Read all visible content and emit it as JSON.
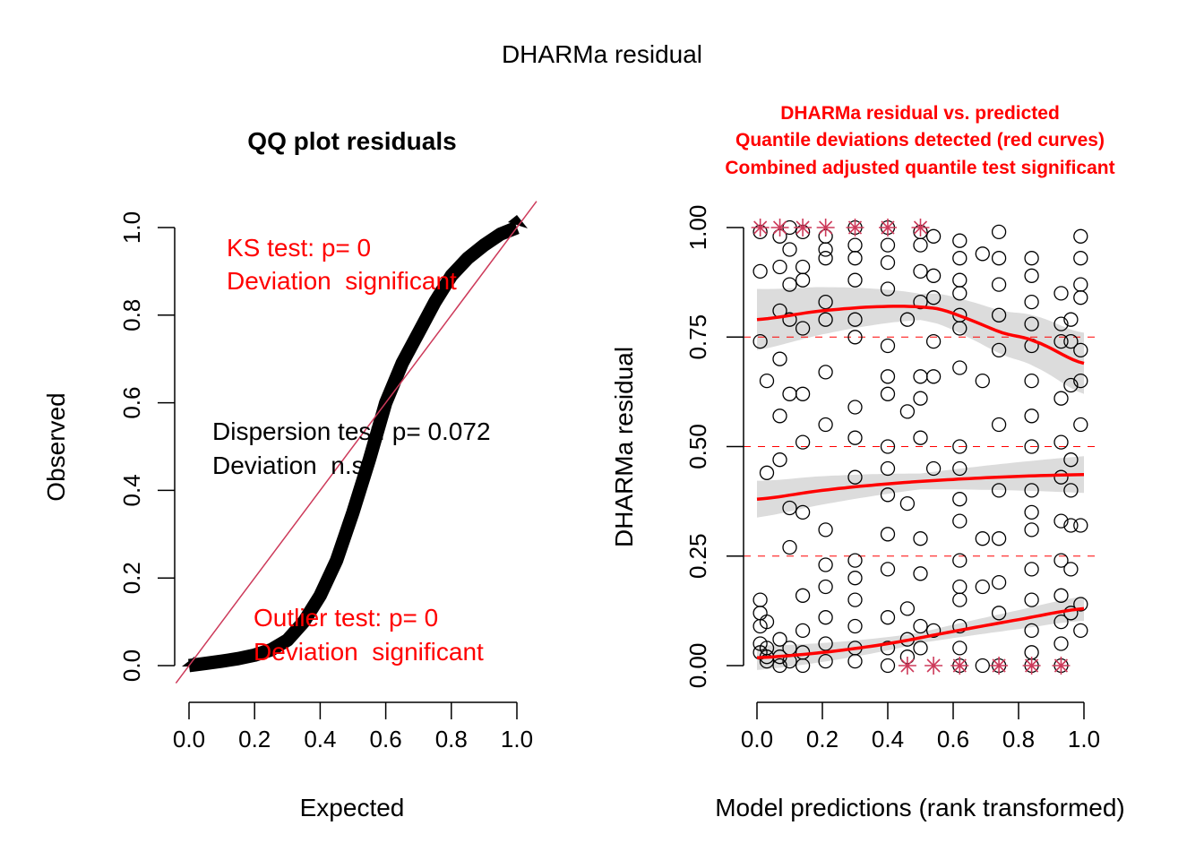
{
  "page": {
    "main_title": "DHARMa residual"
  },
  "colors": {
    "red_text": "#ff0000",
    "reference_line": "#cd3a5a",
    "quantile_line": "#ff0000",
    "band": "#dcdcdc",
    "points": "#000000",
    "outlier_star": "#cd3a5a"
  },
  "chart_data": [
    {
      "type": "scatter",
      "title": "QQ plot residuals",
      "xlabel": "Expected",
      "ylabel": "Observed",
      "xlim": [
        0,
        1
      ],
      "ylim": [
        0,
        1
      ],
      "x_ticks": [
        "0.0",
        "0.2",
        "0.4",
        "0.6",
        "0.8",
        "1.0"
      ],
      "y_ticks": [
        "0.0",
        "0.2",
        "0.4",
        "0.6",
        "0.8",
        "1.0"
      ],
      "grid": false,
      "reference_line": {
        "slope": 1,
        "intercept": 0
      },
      "qq_curve": {
        "x": [
          0.0,
          0.05,
          0.1,
          0.15,
          0.2,
          0.25,
          0.3,
          0.35,
          0.4,
          0.45,
          0.5,
          0.55,
          0.6,
          0.65,
          0.7,
          0.75,
          0.8,
          0.85,
          0.9,
          0.95,
          1.0
        ],
        "y": [
          0.0,
          0.005,
          0.01,
          0.016,
          0.024,
          0.036,
          0.058,
          0.1,
          0.16,
          0.24,
          0.35,
          0.47,
          0.6,
          0.69,
          0.76,
          0.83,
          0.89,
          0.93,
          0.96,
          0.985,
          1.0
        ]
      },
      "annotations": [
        {
          "text": "KS test: p= 0",
          "color": "red"
        },
        {
          "text": "Deviation  significant",
          "color": "red"
        },
        {
          "text": "Dispersion test: p= 0.072",
          "color": "black"
        },
        {
          "text": "Deviation  n.s.",
          "color": "black"
        },
        {
          "text": "Outlier test: p= 0",
          "color": "red"
        },
        {
          "text": "Deviation  significant",
          "color": "red"
        }
      ]
    },
    {
      "type": "scatter",
      "title_lines": [
        "DHARMa residual vs. predicted",
        "Quantile deviations detected (red curves)",
        "Combined adjusted quantile test significant"
      ],
      "xlabel": "Model predictions (rank transformed)",
      "ylabel": "DHARMa residual",
      "xlim": [
        0,
        1
      ],
      "ylim": [
        0,
        1
      ],
      "x_ticks": [
        "0.0",
        "0.2",
        "0.4",
        "0.6",
        "0.8",
        "1.0"
      ],
      "y_ticks": [
        "0.00",
        "0.25",
        "0.50",
        "0.75",
        "1.00"
      ],
      "grid": false,
      "hlines": [
        0.25,
        0.5,
        0.75
      ],
      "x_groups": [
        0.01,
        0.03,
        0.07,
        0.1,
        0.14,
        0.21,
        0.3,
        0.4,
        0.46,
        0.5,
        0.54,
        0.62,
        0.69,
        0.74,
        0.84,
        0.93,
        0.96,
        0.99
      ],
      "quantile_curves": [
        {
          "quantile": 0.75,
          "x": [
            0.0,
            0.2,
            0.4,
            0.55,
            0.65,
            0.75,
            0.85,
            1.0
          ],
          "y": [
            0.79,
            0.81,
            0.82,
            0.815,
            0.79,
            0.76,
            0.74,
            0.69
          ],
          "band": 0.05
        },
        {
          "quantile": 0.5,
          "x": [
            0.0,
            0.2,
            0.4,
            0.6,
            0.8,
            1.0
          ],
          "y": [
            0.38,
            0.4,
            0.415,
            0.425,
            0.432,
            0.436
          ],
          "band": 0.03
        },
        {
          "quantile": 0.25,
          "x": [
            0.0,
            0.2,
            0.4,
            0.6,
            0.8,
            1.0
          ],
          "y": [
            0.018,
            0.03,
            0.05,
            0.078,
            0.105,
            0.13
          ],
          "band": 0.02
        }
      ],
      "outliers_top_x": [
        0.01,
        0.07,
        0.14,
        0.21,
        0.3,
        0.4,
        0.5
      ],
      "outliers_bottom_x": [
        0.46,
        0.54,
        0.62,
        0.74,
        0.84,
        0.93
      ],
      "points": [
        [
          0.01,
          0.99
        ],
        [
          0.01,
          0.9
        ],
        [
          0.01,
          0.74
        ],
        [
          0.01,
          0.15
        ],
        [
          0.01,
          0.12
        ],
        [
          0.01,
          0.09
        ],
        [
          0.01,
          0.05
        ],
        [
          0.01,
          0.03
        ],
        [
          0.03,
          0.65
        ],
        [
          0.03,
          0.44
        ],
        [
          0.03,
          0.1
        ],
        [
          0.03,
          0.04
        ],
        [
          0.03,
          0.02
        ],
        [
          0.03,
          0.01
        ],
        [
          0.07,
          0.98
        ],
        [
          0.07,
          0.91
        ],
        [
          0.07,
          0.81
        ],
        [
          0.07,
          0.7
        ],
        [
          0.07,
          0.57
        ],
        [
          0.07,
          0.47
        ],
        [
          0.07,
          0.06
        ],
        [
          0.07,
          0.02
        ],
        [
          0.07,
          0.0
        ],
        [
          0.1,
          1.0
        ],
        [
          0.1,
          0.95
        ],
        [
          0.1,
          0.87
        ],
        [
          0.1,
          0.79
        ],
        [
          0.1,
          0.62
        ],
        [
          0.1,
          0.36
        ],
        [
          0.1,
          0.27
        ],
        [
          0.1,
          0.04
        ],
        [
          0.1,
          0.01
        ],
        [
          0.14,
          0.99
        ],
        [
          0.14,
          0.91
        ],
        [
          0.14,
          0.88
        ],
        [
          0.14,
          0.77
        ],
        [
          0.14,
          0.62
        ],
        [
          0.14,
          0.51
        ],
        [
          0.14,
          0.35
        ],
        [
          0.14,
          0.16
        ],
        [
          0.14,
          0.08
        ],
        [
          0.14,
          0.03
        ],
        [
          0.14,
          0.0
        ],
        [
          0.21,
          0.98
        ],
        [
          0.21,
          0.95
        ],
        [
          0.21,
          0.93
        ],
        [
          0.21,
          0.83
        ],
        [
          0.21,
          0.79
        ],
        [
          0.21,
          0.67
        ],
        [
          0.21,
          0.55
        ],
        [
          0.21,
          0.31
        ],
        [
          0.21,
          0.23
        ],
        [
          0.21,
          0.18
        ],
        [
          0.21,
          0.11
        ],
        [
          0.21,
          0.05
        ],
        [
          0.21,
          0.01
        ],
        [
          0.3,
          1.0
        ],
        [
          0.3,
          0.96
        ],
        [
          0.3,
          0.93
        ],
        [
          0.3,
          0.88
        ],
        [
          0.3,
          0.79
        ],
        [
          0.3,
          0.75
        ],
        [
          0.3,
          0.59
        ],
        [
          0.3,
          0.52
        ],
        [
          0.3,
          0.43
        ],
        [
          0.3,
          0.24
        ],
        [
          0.3,
          0.2
        ],
        [
          0.3,
          0.15
        ],
        [
          0.3,
          0.09
        ],
        [
          0.3,
          0.04
        ],
        [
          0.3,
          0.01
        ],
        [
          0.4,
          1.0
        ],
        [
          0.4,
          0.96
        ],
        [
          0.4,
          0.92
        ],
        [
          0.4,
          0.86
        ],
        [
          0.4,
          0.73
        ],
        [
          0.4,
          0.66
        ],
        [
          0.4,
          0.62
        ],
        [
          0.4,
          0.5
        ],
        [
          0.4,
          0.45
        ],
        [
          0.4,
          0.39
        ],
        [
          0.4,
          0.3
        ],
        [
          0.4,
          0.22
        ],
        [
          0.4,
          0.11
        ],
        [
          0.4,
          0.04
        ],
        [
          0.4,
          0.0
        ],
        [
          0.46,
          0.79
        ],
        [
          0.46,
          0.58
        ],
        [
          0.46,
          0.37
        ],
        [
          0.46,
          0.13
        ],
        [
          0.46,
          0.06
        ],
        [
          0.46,
          0.02
        ],
        [
          0.5,
          0.99
        ],
        [
          0.5,
          0.96
        ],
        [
          0.5,
          0.9
        ],
        [
          0.5,
          0.83
        ],
        [
          0.5,
          0.66
        ],
        [
          0.5,
          0.61
        ],
        [
          0.5,
          0.52
        ],
        [
          0.5,
          0.29
        ],
        [
          0.5,
          0.21
        ],
        [
          0.5,
          0.09
        ],
        [
          0.5,
          0.04
        ],
        [
          0.54,
          0.98
        ],
        [
          0.54,
          0.89
        ],
        [
          0.54,
          0.84
        ],
        [
          0.54,
          0.74
        ],
        [
          0.54,
          0.66
        ],
        [
          0.54,
          0.45
        ],
        [
          0.54,
          0.08
        ],
        [
          0.62,
          0.97
        ],
        [
          0.62,
          0.93
        ],
        [
          0.62,
          0.88
        ],
        [
          0.62,
          0.85
        ],
        [
          0.62,
          0.8
        ],
        [
          0.62,
          0.77
        ],
        [
          0.62,
          0.68
        ],
        [
          0.62,
          0.5
        ],
        [
          0.62,
          0.45
        ],
        [
          0.62,
          0.38
        ],
        [
          0.62,
          0.33
        ],
        [
          0.62,
          0.24
        ],
        [
          0.62,
          0.18
        ],
        [
          0.62,
          0.15
        ],
        [
          0.62,
          0.09
        ],
        [
          0.62,
          0.04
        ],
        [
          0.62,
          0.0
        ],
        [
          0.69,
          0.94
        ],
        [
          0.69,
          0.65
        ],
        [
          0.69,
          0.29
        ],
        [
          0.69,
          0.18
        ],
        [
          0.69,
          0.0
        ],
        [
          0.74,
          0.99
        ],
        [
          0.74,
          0.93
        ],
        [
          0.74,
          0.87
        ],
        [
          0.74,
          0.8
        ],
        [
          0.74,
          0.72
        ],
        [
          0.74,
          0.55
        ],
        [
          0.74,
          0.4
        ],
        [
          0.74,
          0.29
        ],
        [
          0.74,
          0.19
        ],
        [
          0.74,
          0.12
        ],
        [
          0.74,
          0.0
        ],
        [
          0.84,
          0.93
        ],
        [
          0.84,
          0.89
        ],
        [
          0.84,
          0.83
        ],
        [
          0.84,
          0.78
        ],
        [
          0.84,
          0.73
        ],
        [
          0.84,
          0.65
        ],
        [
          0.84,
          0.57
        ],
        [
          0.84,
          0.5
        ],
        [
          0.84,
          0.4
        ],
        [
          0.84,
          0.35
        ],
        [
          0.84,
          0.31
        ],
        [
          0.84,
          0.22
        ],
        [
          0.84,
          0.15
        ],
        [
          0.84,
          0.08
        ],
        [
          0.84,
          0.03
        ],
        [
          0.84,
          0.0
        ],
        [
          0.93,
          0.85
        ],
        [
          0.93,
          0.78
        ],
        [
          0.93,
          0.74
        ],
        [
          0.93,
          0.61
        ],
        [
          0.93,
          0.51
        ],
        [
          0.93,
          0.43
        ],
        [
          0.93,
          0.33
        ],
        [
          0.93,
          0.24
        ],
        [
          0.93,
          0.16
        ],
        [
          0.93,
          0.1
        ],
        [
          0.93,
          0.05
        ],
        [
          0.93,
          0.0
        ],
        [
          0.96,
          0.79
        ],
        [
          0.96,
          0.74
        ],
        [
          0.96,
          0.64
        ],
        [
          0.96,
          0.47
        ],
        [
          0.96,
          0.4
        ],
        [
          0.96,
          0.32
        ],
        [
          0.96,
          0.22
        ],
        [
          0.96,
          0.12
        ],
        [
          0.99,
          0.98
        ],
        [
          0.99,
          0.93
        ],
        [
          0.99,
          0.87
        ],
        [
          0.99,
          0.84
        ],
        [
          0.99,
          0.72
        ],
        [
          0.99,
          0.65
        ],
        [
          0.99,
          0.55
        ],
        [
          0.99,
          0.32
        ],
        [
          0.99,
          0.14
        ],
        [
          0.99,
          0.08
        ]
      ]
    }
  ]
}
